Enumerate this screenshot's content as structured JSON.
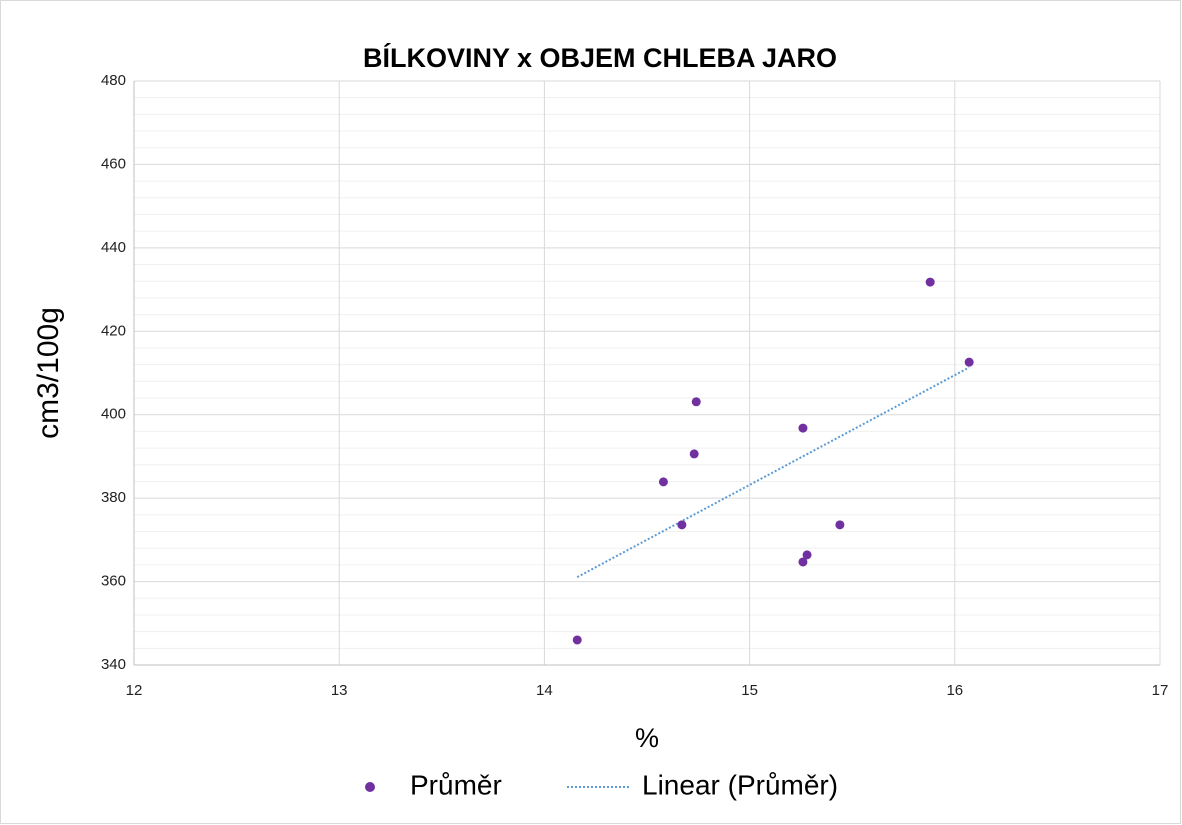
{
  "chart_data": {
    "type": "scatter",
    "title": "BÍLKOVINY x OBJEM CHLEBA JARO",
    "x_label": "%",
    "y_label": "cm3/100g",
    "x": [
      14.16,
      14.58,
      14.67,
      14.73,
      14.74,
      15.26,
      15.26,
      15.28,
      15.44,
      15.88,
      16.07
    ],
    "series": [
      {
        "name": "Průměr",
        "color": "#7030a0",
        "values": [
          346.0,
          383.9,
          373.6,
          390.6,
          403.1,
          396.8,
          364.7,
          366.4,
          373.6,
          431.8,
          412.6
        ]
      }
    ],
    "trendline": {
      "name": "Linear (Průměr)",
      "kind": "linear",
      "color": "#5b9bd5"
    },
    "xlim": [
      12,
      17
    ],
    "xticks": [
      12,
      13,
      14,
      15,
      16,
      17
    ],
    "ylim": [
      340,
      480
    ],
    "yticks": [
      340,
      360,
      380,
      400,
      420,
      440,
      460,
      480
    ],
    "grid": true,
    "minor_grid": true,
    "legend": "bottom"
  }
}
